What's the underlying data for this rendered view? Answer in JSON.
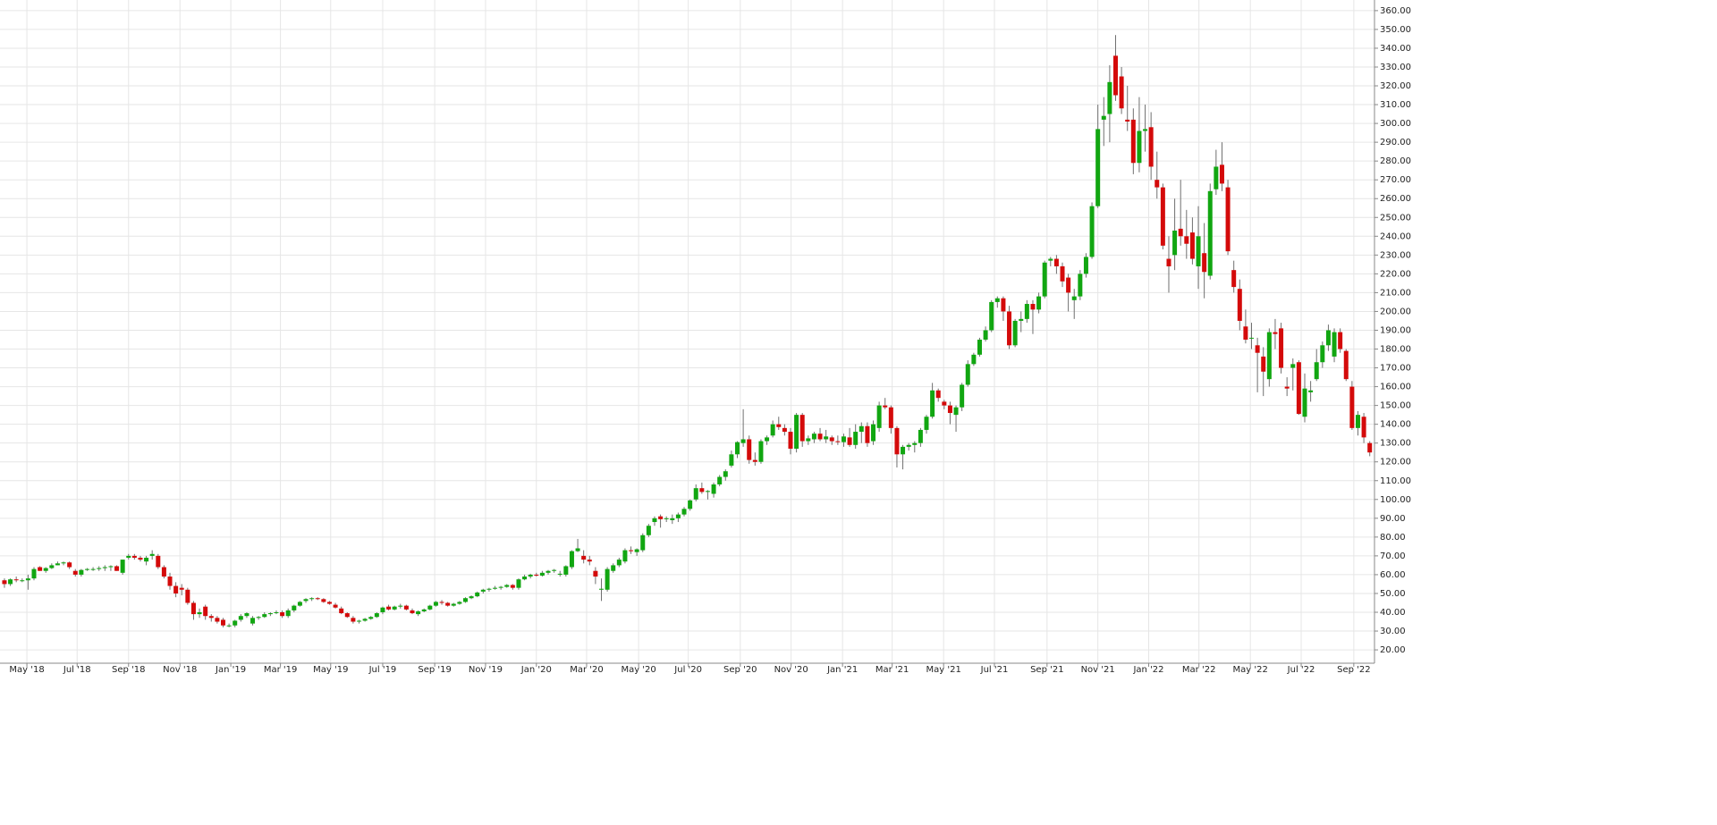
{
  "chart_data": {
    "type": "candlestick",
    "up_color": "#11a611",
    "down_color": "#d40a0a",
    "wick_color": "#707070",
    "grid": true,
    "xlim": [
      -0.75,
      231.5
    ],
    "ylim": [
      12.9,
      364.7
    ],
    "xticks": [
      {
        "value": 3.8,
        "label": "May '18"
      },
      {
        "value": 12.3,
        "label": "Jul '18"
      },
      {
        "value": 21.0,
        "label": "Sep '18"
      },
      {
        "value": 29.7,
        "label": "Nov '18"
      },
      {
        "value": 38.3,
        "label": "Jan '19"
      },
      {
        "value": 46.7,
        "label": "Mar '19"
      },
      {
        "value": 55.2,
        "label": "May '19"
      },
      {
        "value": 64.0,
        "label": "Jul '19"
      },
      {
        "value": 72.8,
        "label": "Sep '19"
      },
      {
        "value": 81.4,
        "label": "Nov '19"
      },
      {
        "value": 90.0,
        "label": "Jan '20"
      },
      {
        "value": 98.5,
        "label": "Mar '20"
      },
      {
        "value": 107.3,
        "label": "May '20"
      },
      {
        "value": 115.7,
        "label": "Jul '20"
      },
      {
        "value": 124.5,
        "label": "Sep '20"
      },
      {
        "value": 133.1,
        "label": "Nov '20"
      },
      {
        "value": 141.8,
        "label": "Jan '21"
      },
      {
        "value": 150.2,
        "label": "Mar '21"
      },
      {
        "value": 158.9,
        "label": "May '21"
      },
      {
        "value": 167.5,
        "label": "Jul '21"
      },
      {
        "value": 176.4,
        "label": "Sep '21"
      },
      {
        "value": 185.0,
        "label": "Nov '21"
      },
      {
        "value": 193.6,
        "label": "Jan '22"
      },
      {
        "value": 202.1,
        "label": "Mar '22"
      },
      {
        "value": 210.8,
        "label": "May '22"
      },
      {
        "value": 219.4,
        "label": "Jul '22"
      },
      {
        "value": 228.3,
        "label": "Sep '22"
      }
    ],
    "yticks": [
      {
        "value": 20,
        "label": "20.00"
      },
      {
        "value": 30,
        "label": "30.00"
      },
      {
        "value": 40,
        "label": "40.00"
      },
      {
        "value": 50,
        "label": "50.00"
      },
      {
        "value": 60,
        "label": "60.00"
      },
      {
        "value": 70,
        "label": "70.00"
      },
      {
        "value": 80,
        "label": "80.00"
      },
      {
        "value": 90,
        "label": "90.00"
      },
      {
        "value": 100,
        "label": "100.00"
      },
      {
        "value": 110,
        "label": "110.00"
      },
      {
        "value": 120,
        "label": "120.00"
      },
      {
        "value": 130,
        "label": "130.00"
      },
      {
        "value": 140,
        "label": "140.00"
      },
      {
        "value": 150,
        "label": "150.00"
      },
      {
        "value": 160,
        "label": "160.00"
      },
      {
        "value": 170,
        "label": "170.00"
      },
      {
        "value": 180,
        "label": "180.00"
      },
      {
        "value": 190,
        "label": "190.00"
      },
      {
        "value": 200,
        "label": "200.00"
      },
      {
        "value": 210,
        "label": "210.00"
      },
      {
        "value": 220,
        "label": "220.00"
      },
      {
        "value": 230,
        "label": "230.00"
      },
      {
        "value": 240,
        "label": "240.00"
      },
      {
        "value": 250,
        "label": "250.00"
      },
      {
        "value": 260,
        "label": "260.00"
      },
      {
        "value": 270,
        "label": "270.00"
      },
      {
        "value": 280,
        "label": "280.00"
      },
      {
        "value": 290,
        "label": "290.00"
      },
      {
        "value": 300,
        "label": "300.00"
      },
      {
        "value": 310,
        "label": "310.00"
      },
      {
        "value": 320,
        "label": "320.00"
      },
      {
        "value": 330,
        "label": "330.00"
      },
      {
        "value": 340,
        "label": "340.00"
      },
      {
        "value": 350,
        "label": "350.00"
      },
      {
        "value": 360,
        "label": "360.00"
      }
    ],
    "open": [
      57,
      55,
      57.5,
      57,
      57,
      58,
      64,
      62,
      63.5,
      65,
      66,
      66.5,
      62,
      60,
      62.5,
      63,
      63,
      63.5,
      64,
      64.5,
      61,
      69,
      70,
      69,
      67,
      70,
      70,
      64,
      59,
      54,
      53,
      52,
      45,
      39,
      43,
      38,
      37,
      36,
      33,
      33,
      36,
      38,
      34,
      37,
      37.5,
      39,
      40,
      40,
      38,
      41,
      43.5,
      46,
      47,
      47.5,
      47,
      45.5,
      44,
      42,
      39.5,
      37,
      35,
      35.5,
      36.5,
      37.5,
      40,
      43,
      41.5,
      43,
      43.5,
      41,
      39,
      40.5,
      41.5,
      43.5,
      45.5,
      45,
      43.5,
      44.5,
      45.5,
      47.5,
      48.5,
      51,
      52,
      52.5,
      53,
      53.5,
      54.5,
      53,
      57.5,
      59,
      60,
      59.5,
      61,
      62,
      60,
      60,
      64,
      72.5,
      70,
      68,
      62,
      52,
      52,
      62,
      65,
      67,
      73,
      72,
      73,
      81,
      88,
      91,
      89.5,
      89,
      90,
      92,
      95,
      100,
      106,
      104,
      103,
      108,
      112,
      118,
      124,
      130,
      132,
      121,
      120,
      131,
      134,
      140,
      138,
      136,
      127,
      145,
      131,
      132,
      135,
      132,
      133,
      131,
      130.5,
      133,
      129,
      136,
      139,
      131,
      138,
      150,
      149,
      138,
      124,
      128,
      129,
      130,
      137,
      144,
      158,
      152,
      150,
      145,
      149,
      161,
      172,
      177,
      185,
      190,
      205,
      207,
      200,
      182,
      195,
      196,
      204,
      201,
      208,
      227,
      228,
      224,
      218,
      206,
      208,
      220,
      229,
      256,
      302,
      305,
      336,
      325,
      302,
      302,
      279,
      296,
      298,
      270,
      266,
      228,
      230,
      244,
      240,
      242,
      224,
      231,
      219,
      265,
      278,
      266,
      222,
      212,
      192,
      186,
      182,
      176,
      164,
      189,
      191,
      160,
      170,
      173,
      144,
      157,
      164,
      173,
      182,
      176,
      189,
      179,
      160,
      138,
      144,
      130
    ],
    "high": [
      58,
      58,
      59,
      58,
      60,
      64,
      64.5,
      64,
      66,
      67,
      67,
      67,
      63,
      63,
      63.5,
      64,
      64.5,
      65,
      65,
      65,
      68,
      71,
      71,
      70,
      70,
      73,
      71,
      65,
      61,
      56,
      55,
      53,
      46,
      42,
      44,
      39,
      38,
      37,
      34,
      36,
      39,
      40,
      38,
      38,
      40,
      40,
      41,
      41,
      42,
      44,
      46,
      47.5,
      48,
      48,
      47.5,
      46,
      45,
      43,
      40,
      38,
      36,
      37,
      38,
      40,
      43,
      44,
      43.5,
      44.5,
      44,
      42,
      41,
      42,
      44,
      46,
      46.5,
      45.5,
      45,
      46,
      48,
      49,
      51,
      52.5,
      53,
      54,
      54,
      55,
      55,
      58,
      60,
      60.5,
      61,
      62,
      62.5,
      63,
      62,
      65,
      73,
      79,
      73,
      70,
      64,
      58,
      64,
      66,
      69,
      74,
      75,
      74,
      82,
      87,
      91,
      92,
      91,
      92,
      93,
      96,
      100,
      108,
      109,
      105,
      109,
      113,
      116,
      126,
      131,
      148,
      134,
      125,
      132,
      134,
      142,
      144,
      140,
      138,
      146,
      146,
      134,
      136,
      138,
      137,
      134,
      134,
      135,
      138,
      140,
      141,
      141,
      142,
      152,
      154,
      150,
      139,
      129,
      130,
      131,
      138,
      145,
      162,
      159,
      153,
      152,
      150,
      162,
      174,
      178,
      186,
      192,
      206,
      208,
      208,
      203,
      196,
      200,
      206,
      206,
      210,
      227,
      229,
      230,
      226,
      220,
      212,
      222,
      231,
      258,
      310,
      314,
      331,
      347,
      330,
      320,
      308,
      314,
      310,
      306,
      285,
      268,
      240,
      260,
      270,
      254,
      250,
      256,
      247,
      268,
      286,
      290,
      270,
      227,
      217,
      201,
      194,
      186,
      181,
      191,
      196,
      194,
      165,
      175,
      174,
      167,
      163,
      180,
      184,
      193,
      191,
      191,
      180,
      163,
      147,
      146,
      131
    ],
    "low": [
      53,
      54,
      56,
      56,
      52,
      57,
      62,
      61,
      63,
      65,
      65,
      63,
      59,
      59,
      62,
      62,
      62,
      62,
      62,
      62,
      60,
      68,
      68,
      67,
      65,
      68,
      63,
      58,
      52,
      48,
      49,
      44,
      36,
      37,
      36,
      35,
      34,
      32,
      32,
      32,
      35,
      37,
      33,
      36,
      37,
      38,
      39,
      37,
      37,
      40,
      43,
      45,
      46,
      46.5,
      45,
      44,
      42,
      39,
      37,
      34,
      34,
      35,
      36,
      37,
      39,
      41,
      41,
      42,
      41,
      39,
      38,
      40,
      41,
      43,
      44,
      43,
      43,
      44,
      45,
      47,
      48,
      50,
      51,
      52,
      52,
      53,
      52,
      52,
      57,
      58,
      59,
      59,
      60,
      61,
      59,
      59,
      63,
      72,
      66,
      65,
      55,
      46,
      51,
      61,
      64,
      66,
      71,
      70,
      72,
      80,
      86,
      85,
      88,
      87,
      88,
      91,
      94,
      99,
      103,
      100,
      101,
      107,
      110,
      117,
      122,
      128,
      119,
      118,
      119,
      129,
      133,
      137,
      134,
      124,
      125,
      128,
      129,
      130,
      131,
      130,
      129,
      129,
      128,
      128,
      127,
      130,
      128,
      129,
      136,
      148,
      135,
      117,
      116,
      126,
      125,
      128,
      135,
      143,
      152,
      148,
      140,
      136,
      147,
      160,
      171,
      176,
      184,
      189,
      202,
      195,
      180,
      181,
      189,
      194,
      188,
      199,
      207,
      224,
      220,
      213,
      200,
      196,
      206,
      218,
      228,
      255,
      288,
      290,
      312,
      305,
      296,
      273,
      274,
      285,
      270,
      260,
      233,
      210,
      222,
      235,
      228,
      225,
      212,
      207,
      217,
      262,
      264,
      230,
      210,
      190,
      183,
      180,
      157,
      155,
      160,
      180,
      167,
      155,
      158,
      145,
      141,
      152,
      163,
      170,
      179,
      173,
      178,
      163,
      137,
      134,
      130,
      123
    ],
    "close": [
      55,
      57.5,
      57,
      57,
      58,
      63,
      62,
      63.5,
      65,
      66,
      66.5,
      64,
      60,
      62.5,
      63,
      63,
      63.5,
      64,
      64.5,
      62,
      68,
      70,
      69,
      68,
      69,
      71,
      64,
      59,
      54,
      50,
      52,
      45,
      39,
      40,
      38,
      37,
      35,
      33,
      33,
      35.5,
      38,
      39.5,
      37,
      37.5,
      39,
      39.5,
      40,
      38,
      41,
      43.5,
      45.5,
      47,
      47.5,
      47,
      45.5,
      44.5,
      42.5,
      39.5,
      37.5,
      35,
      35.5,
      36.5,
      37.5,
      39.5,
      42.5,
      41.5,
      43,
      43.5,
      41.5,
      39.5,
      40.5,
      41.5,
      43.5,
      45.5,
      45,
      43.5,
      44.5,
      45.5,
      47.5,
      48.5,
      50.5,
      52,
      52.5,
      53,
      53.5,
      54.5,
      53,
      57.5,
      59,
      60,
      59.5,
      61,
      62,
      62.5,
      60.5,
      64.5,
      72.5,
      74,
      68,
      67,
      59,
      52.5,
      63,
      65,
      68,
      73,
      72.5,
      73.5,
      81,
      86,
      90,
      89.5,
      90,
      90,
      92,
      95,
      99.5,
      106,
      104,
      104.5,
      108,
      112,
      115,
      124,
      130.5,
      132,
      121,
      120,
      131,
      133,
      140,
      138.5,
      136,
      127,
      145,
      131,
      132.5,
      135,
      132,
      133.5,
      131,
      130.5,
      133.5,
      129,
      136,
      139,
      130,
      140,
      150,
      149,
      138,
      124,
      128,
      129,
      130,
      137,
      144,
      158,
      154,
      150,
      146,
      149,
      161,
      172,
      177,
      185,
      190,
      205,
      207,
      200,
      182,
      195,
      196,
      204,
      201,
      208,
      226,
      228,
      224,
      216,
      210,
      208,
      220,
      229,
      256,
      297,
      304,
      322,
      315,
      308,
      301,
      279,
      296,
      297,
      277,
      266,
      235,
      224,
      243,
      240,
      236,
      228,
      240,
      221,
      264,
      277,
      268,
      232,
      213,
      195,
      185,
      186,
      178,
      168,
      189,
      188,
      170,
      159,
      172,
      145.5,
      159,
      158,
      173,
      182,
      190,
      189,
      180,
      164,
      138,
      145,
      133,
      125
    ]
  }
}
